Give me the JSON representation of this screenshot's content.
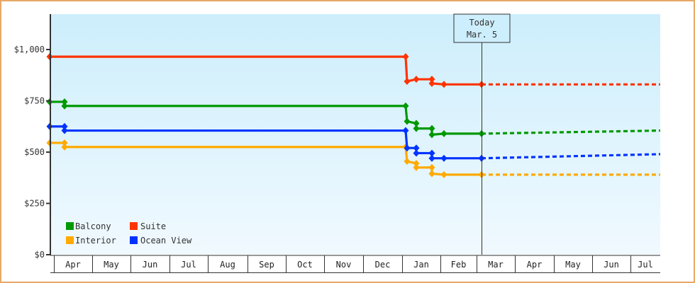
{
  "chart_data": {
    "type": "line",
    "title": "",
    "xlabel": "",
    "ylabel": "",
    "ylim": [
      0,
      1200
    ],
    "y_ticks": [
      {
        "value": 0,
        "label": "$0"
      },
      {
        "value": 250,
        "label": "$250"
      },
      {
        "value": 500,
        "label": "$500"
      },
      {
        "value": 750,
        "label": "$750"
      },
      {
        "value": 1000,
        "label": "$1,000"
      }
    ],
    "x_ticks": [
      "Apr",
      "May",
      "Jun",
      "Jul",
      "Aug",
      "Sep",
      "Oct",
      "Nov",
      "Dec",
      "Jan",
      "Feb",
      "Mar",
      "Apr",
      "May",
      "Jun",
      "Jul"
    ],
    "grid": false,
    "legend_position": "bottom-left-inside",
    "today_marker": {
      "line1": "Today",
      "line2": "Mar. 5"
    },
    "series": [
      {
        "name": "Balcony",
        "color": "#009900",
        "points": [
          {
            "x": "Mar 15",
            "y": 745
          },
          {
            "x": "Apr 1",
            "y": 745
          },
          {
            "x": "Apr 1",
            "y": 725
          },
          {
            "x": "Dec 25",
            "y": 725
          },
          {
            "x": "Dec 26",
            "y": 650
          },
          {
            "x": "Jan 1",
            "y": 640
          },
          {
            "x": "Jan 1",
            "y": 615
          },
          {
            "x": "Jan 15",
            "y": 615
          },
          {
            "x": "Jan 15",
            "y": 585
          },
          {
            "x": "Jan 25",
            "y": 590
          },
          {
            "x": "Mar 5",
            "y": 590
          }
        ],
        "forecast": [
          {
            "x": "Mar 5",
            "y": 590
          },
          {
            "x": "Jul 31",
            "y": 605
          }
        ]
      },
      {
        "name": "Suite",
        "color": "#ff3300",
        "points": [
          {
            "x": "Mar 15",
            "y": 965
          },
          {
            "x": "Dec 25",
            "y": 965
          },
          {
            "x": "Dec 26",
            "y": 845
          },
          {
            "x": "Jan 1",
            "y": 855
          },
          {
            "x": "Jan 15",
            "y": 855
          },
          {
            "x": "Jan 15",
            "y": 835
          },
          {
            "x": "Jan 25",
            "y": 830
          },
          {
            "x": "Mar 5",
            "y": 830
          }
        ],
        "forecast": [
          {
            "x": "Mar 5",
            "y": 830
          },
          {
            "x": "Jul 31",
            "y": 830
          }
        ]
      },
      {
        "name": "Interior",
        "color": "#ffaa00",
        "points": [
          {
            "x": "Mar 15",
            "y": 545
          },
          {
            "x": "Apr 1",
            "y": 545
          },
          {
            "x": "Apr 1",
            "y": 525
          },
          {
            "x": "Dec 25",
            "y": 525
          },
          {
            "x": "Dec 26",
            "y": 455
          },
          {
            "x": "Jan 1",
            "y": 445
          },
          {
            "x": "Jan 1",
            "y": 425
          },
          {
            "x": "Jan 15",
            "y": 425
          },
          {
            "x": "Jan 15",
            "y": 395
          },
          {
            "x": "Jan 25",
            "y": 390
          },
          {
            "x": "Mar 5",
            "y": 390
          }
        ],
        "forecast": [
          {
            "x": "Mar 5",
            "y": 390
          },
          {
            "x": "Jul 31",
            "y": 390
          }
        ]
      },
      {
        "name": "Ocean View",
        "color": "#0033ff",
        "points": [
          {
            "x": "Mar 15",
            "y": 625
          },
          {
            "x": "Apr 1",
            "y": 625
          },
          {
            "x": "Apr 1",
            "y": 605
          },
          {
            "x": "Dec 25",
            "y": 605
          },
          {
            "x": "Dec 26",
            "y": 520
          },
          {
            "x": "Jan 1",
            "y": 520
          },
          {
            "x": "Jan 1",
            "y": 495
          },
          {
            "x": "Jan 15",
            "y": 495
          },
          {
            "x": "Jan 15",
            "y": 470
          },
          {
            "x": "Jan 25",
            "y": 470
          },
          {
            "x": "Mar 5",
            "y": 470
          }
        ],
        "forecast": [
          {
            "x": "Mar 5",
            "y": 470
          },
          {
            "x": "Jul 31",
            "y": 490
          }
        ]
      }
    ]
  },
  "legend": {
    "items": [
      {
        "label": "Balcony",
        "color": "#009900"
      },
      {
        "label": "Suite",
        "color": "#ff3300"
      },
      {
        "label": "Interior",
        "color": "#ffaa00"
      },
      {
        "label": "Ocean View",
        "color": "#0033ff"
      }
    ]
  },
  "today": {
    "line1": "Today",
    "line2": "Mar. 5"
  }
}
